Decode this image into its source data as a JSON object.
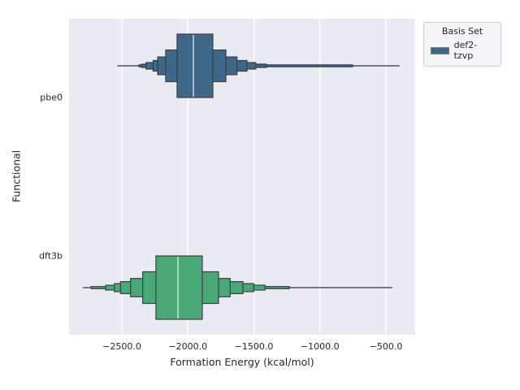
{
  "chart_data": {
    "type": "boxenplot",
    "title": "",
    "xlabel": "Formation Energy (kcal/mol)",
    "ylabel": "Functional",
    "categories": [
      "pbe0",
      "dft3b"
    ],
    "x_ticks": [
      -2500,
      -2000,
      -1500,
      -1000,
      -500
    ],
    "x_tick_labels": [
      "−2500.0",
      "−2000.0",
      "−1500.0",
      "−1000.0",
      "−500.0"
    ],
    "xlim": [
      -2900,
      -278
    ],
    "grid": "vertical-only",
    "legend": {
      "title": "Basis Set",
      "position": "outside-top-right",
      "entries": [
        {
          "label": "def2-tzvp",
          "color": "#3f6787"
        }
      ]
    },
    "series": [
      {
        "functional": "pbe0",
        "basis_set": "def2-tzvp",
        "color": "#3f6787",
        "median": -1958,
        "whisker": [
          -2534,
          -396
        ],
        "boxes": [
          {
            "lo": -2082,
            "hi": -1811,
            "h": 1.0
          },
          {
            "lo": -2168,
            "hi": -1712,
            "h": 0.5
          },
          {
            "lo": -2229,
            "hi": -1628,
            "h": 0.28
          },
          {
            "lo": -2264,
            "hi": -1552,
            "h": 0.167
          },
          {
            "lo": -2317,
            "hi": -1486,
            "h": 0.103
          },
          {
            "lo": -2350,
            "hi": -1405,
            "h": 0.053
          },
          {
            "lo": -2371,
            "hi": -752,
            "h": 0.03
          }
        ]
      },
      {
        "functional": "dft3b",
        "color": "#4aa876",
        "median": -2075,
        "whisker": [
          -2795,
          -452
        ],
        "boxes": [
          {
            "lo": -2242,
            "hi": -1891,
            "h": 1.0
          },
          {
            "lo": -2342,
            "hi": -1768,
            "h": 0.5
          },
          {
            "lo": -2434,
            "hi": -1680,
            "h": 0.29
          },
          {
            "lo": -2510,
            "hi": -1583,
            "h": 0.19
          },
          {
            "lo": -2557,
            "hi": -1501,
            "h": 0.128
          },
          {
            "lo": -2623,
            "hi": -1415,
            "h": 0.077
          },
          {
            "lo": -2734,
            "hi": -1232,
            "h": 0.034
          }
        ]
      }
    ],
    "colors": {
      "figure_bg": "#ffffff",
      "plot_bg": "#eaeaf2",
      "gridline": "#ffffff",
      "box_edge": "#3a3f47",
      "whisker_line": "#2f3237",
      "median_line": "rgba(255,255,255,0.55)",
      "text": "#262626"
    }
  }
}
